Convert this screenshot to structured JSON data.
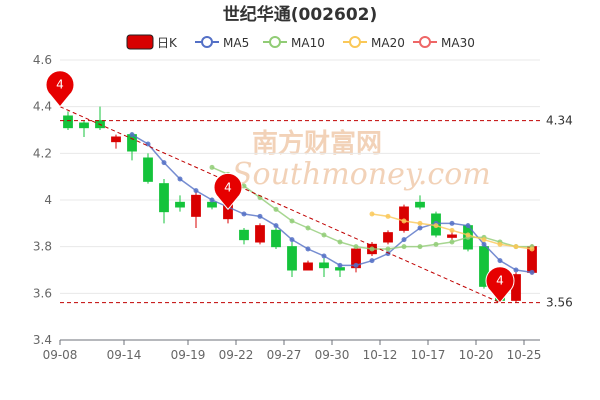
{
  "title": "世纪华通(002602)",
  "legend": [
    {
      "label": "日K",
      "color": "#d80000",
      "kind": "box"
    },
    {
      "label": "MA5",
      "color": "#5470c6",
      "kind": "circle"
    },
    {
      "label": "MA10",
      "color": "#91cc75",
      "kind": "circle"
    },
    {
      "label": "MA20",
      "color": "#fac858",
      "kind": "circle"
    },
    {
      "label": "MA30",
      "color": "#ee6666",
      "kind": "circle"
    }
  ],
  "watermark": {
    "cn": "南方财富网",
    "en": "Southmoney.com",
    "color": "#f2d2b8"
  },
  "colors": {
    "up": "#d80000",
    "down": "#14c33b",
    "grid": "#e8e8e8",
    "ref_line": "#c00000",
    "trend_line": "#c00000"
  },
  "chart_data": {
    "type": "candlestick",
    "ylim": [
      3.4,
      4.6
    ],
    "yticks": [
      3.4,
      3.6,
      3.8,
      4,
      4.2,
      4.4,
      4.6
    ],
    "xtick_labels": [
      "09-08",
      "09-14",
      "09-19",
      "09-22",
      "09-27",
      "09-30",
      "10-12",
      "10-17",
      "10-20",
      "10-25"
    ],
    "xtick_positions": [
      0,
      4,
      8,
      11,
      14,
      17,
      20,
      23,
      26,
      29
    ],
    "candles": [
      {
        "open": 4.36,
        "close": 4.31,
        "high": 4.38,
        "low": 4.3
      },
      {
        "open": 4.33,
        "close": 4.31,
        "high": 4.34,
        "low": 4.27
      },
      {
        "open": 4.34,
        "close": 4.31,
        "high": 4.4,
        "low": 4.3
      },
      {
        "open": 4.25,
        "close": 4.27,
        "high": 4.28,
        "low": 4.22
      },
      {
        "open": 4.28,
        "close": 4.21,
        "high": 4.29,
        "low": 4.17
      },
      {
        "open": 4.18,
        "close": 4.08,
        "high": 4.2,
        "low": 4.07
      },
      {
        "open": 4.07,
        "close": 3.95,
        "high": 4.09,
        "low": 3.9
      },
      {
        "open": 3.99,
        "close": 3.97,
        "high": 4.02,
        "low": 3.95
      },
      {
        "open": 3.93,
        "close": 4.02,
        "high": 4.04,
        "low": 3.88
      },
      {
        "open": 3.99,
        "close": 3.97,
        "high": 4.01,
        "low": 3.96
      },
      {
        "open": 3.92,
        "close": 4.02,
        "high": 4.04,
        "low": 3.9
      },
      {
        "open": 3.87,
        "close": 3.83,
        "high": 3.88,
        "low": 3.81
      },
      {
        "open": 3.82,
        "close": 3.89,
        "high": 3.9,
        "low": 3.81
      },
      {
        "open": 3.87,
        "close": 3.8,
        "high": 3.88,
        "low": 3.79
      },
      {
        "open": 3.8,
        "close": 3.7,
        "high": 3.82,
        "low": 3.67
      },
      {
        "open": 3.7,
        "close": 3.73,
        "high": 3.74,
        "low": 3.7
      },
      {
        "open": 3.73,
        "close": 3.71,
        "high": 3.75,
        "low": 3.67
      },
      {
        "open": 3.71,
        "close": 3.7,
        "high": 3.72,
        "low": 3.67
      },
      {
        "open": 3.71,
        "close": 3.79,
        "high": 3.8,
        "low": 3.69
      },
      {
        "open": 3.77,
        "close": 3.81,
        "high": 3.82,
        "low": 3.76
      },
      {
        "open": 3.82,
        "close": 3.86,
        "high": 3.87,
        "low": 3.81
      },
      {
        "open": 3.87,
        "close": 3.97,
        "high": 3.98,
        "low": 3.86
      },
      {
        "open": 3.99,
        "close": 3.97,
        "high": 4.02,
        "low": 3.96
      },
      {
        "open": 3.94,
        "close": 3.85,
        "high": 3.95,
        "low": 3.84
      },
      {
        "open": 3.84,
        "close": 3.85,
        "high": 3.87,
        "low": 3.83
      },
      {
        "open": 3.89,
        "close": 3.79,
        "high": 3.9,
        "low": 3.78
      },
      {
        "open": 3.8,
        "close": 3.63,
        "high": 3.81,
        "low": 3.62
      },
      {
        "open": 3.64,
        "close": 3.57,
        "high": 3.67,
        "low": 3.56
      },
      {
        "open": 3.57,
        "close": 3.68,
        "high": 3.69,
        "low": 3.56
      },
      {
        "open": 3.69,
        "close": 3.8,
        "high": 3.81,
        "low": 3.68
      }
    ],
    "ma5": [
      null,
      null,
      null,
      null,
      4.28,
      4.24,
      4.16,
      4.09,
      4.04,
      4.0,
      3.97,
      3.94,
      3.93,
      3.89,
      3.83,
      3.79,
      3.76,
      3.72,
      3.72,
      3.74,
      3.77,
      3.83,
      3.88,
      3.9,
      3.9,
      3.89,
      3.81,
      3.74,
      3.7,
      3.69
    ],
    "ma10": [
      null,
      null,
      null,
      null,
      null,
      null,
      null,
      null,
      null,
      4.14,
      4.11,
      4.06,
      4.01,
      3.96,
      3.91,
      3.88,
      3.85,
      3.82,
      3.8,
      3.79,
      3.79,
      3.8,
      3.8,
      3.81,
      3.82,
      3.84,
      3.84,
      3.82,
      3.8,
      3.8
    ],
    "ma20": [
      null,
      null,
      null,
      null,
      null,
      null,
      null,
      null,
      null,
      null,
      null,
      null,
      null,
      null,
      null,
      null,
      null,
      null,
      null,
      3.94,
      3.93,
      3.91,
      3.9,
      3.89,
      3.87,
      3.85,
      3.83,
      3.81,
      3.8,
      3.79
    ],
    "reference_lines": [
      {
        "value": 4.34,
        "label": "4.34"
      },
      {
        "value": 3.56,
        "label": "3.56"
      }
    ],
    "trend_line": {
      "from": {
        "index": 0,
        "value": 4.4
      },
      "to": {
        "index": 27,
        "value": 3.56
      }
    },
    "markers": [
      {
        "index": 0,
        "value": 4.4,
        "label": "4"
      },
      {
        "index": 10,
        "value": 3.96,
        "label": "4"
      },
      {
        "index": 27,
        "value": 3.56,
        "label": "4"
      }
    ]
  }
}
